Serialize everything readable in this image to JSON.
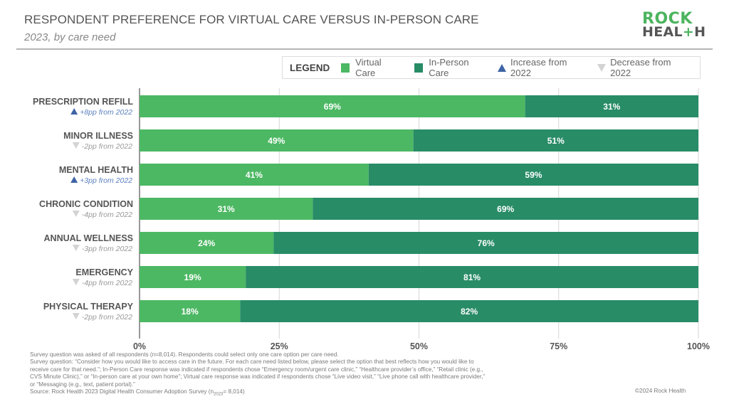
{
  "header": {
    "title": "RESPONDENT PREFERENCE FOR VIRTUAL CARE VERSUS IN-PERSON CARE",
    "subtitle": "2023, by care need"
  },
  "logo": {
    "line1": "ROCK",
    "line2_a": "HEAL",
    "line2_plus": "+",
    "line2_b": "H"
  },
  "legend": {
    "title": "LEGEND",
    "items": [
      {
        "label": "Virtual Care",
        "kind": "swatch",
        "color": "#4cb863"
      },
      {
        "label": "In-Person Care",
        "kind": "swatch",
        "color": "#288c67"
      },
      {
        "label": "Increase from 2022",
        "kind": "up",
        "color": "#3f64a6"
      },
      {
        "label": "Decrease from 2022",
        "kind": "down",
        "color": "#d3d3d3"
      }
    ]
  },
  "chart_data": {
    "type": "bar",
    "orientation": "horizontal",
    "stacked": true,
    "title": "RESPONDENT PREFERENCE FOR VIRTUAL CARE VERSUS IN-PERSON CARE",
    "subtitle": "2023, by care need",
    "categories": [
      "PRESCRIPTION REFILL",
      "MINOR ILLNESS",
      "MENTAL HEALTH",
      "CHRONIC CONDITION",
      "ANNUAL WELLNESS",
      "EMERGENCY",
      "PHYSICAL THERAPY"
    ],
    "changes": [
      {
        "direction": "up",
        "text": "+8pp from 2022"
      },
      {
        "direction": "down",
        "text": "-2pp from 2022"
      },
      {
        "direction": "up",
        "text": "+3pp from 2022"
      },
      {
        "direction": "down",
        "text": "-4pp from 2022"
      },
      {
        "direction": "down",
        "text": "-3pp from 2022"
      },
      {
        "direction": "down",
        "text": "-4pp from 2022"
      },
      {
        "direction": "down",
        "text": "-2pp from 2022"
      }
    ],
    "series": [
      {
        "name": "Virtual Care",
        "color": "#4cb863",
        "values": [
          69,
          49,
          41,
          31,
          24,
          19,
          18
        ]
      },
      {
        "name": "In-Person Care",
        "color": "#288c67",
        "values": [
          31,
          51,
          59,
          69,
          76,
          81,
          82
        ]
      }
    ],
    "xlim": [
      0,
      100
    ],
    "xticks": [
      0,
      25,
      50,
      75,
      100
    ],
    "xtick_labels": [
      "0%",
      "25%",
      "50%",
      "75%",
      "100%"
    ],
    "xlabel": "",
    "ylabel": "",
    "grid": true,
    "legend_position": "top-right",
    "up_color": "#3f64a6",
    "down_color": "#d3d3d3"
  },
  "footnotes": {
    "line1": "Survey question was asked of all respondents (n=8,014). Respondents could select only one care option per care need.",
    "line2": "Survey question: “Consider how you would like to access care in the future. For each care need listed below, please select the option that best reflects how you would like to",
    "line3": "receive care for that need.”; In-Person Care response was indicated if respondents chose “Emergency room/urgent care clinic,” “Healthcare provider’s office,” “Retail clinic (e.g.,",
    "line4": "CVS Minute Clinic),” or “In-person care at your own home”; Virtual care response was indicated if respondents chose “Live video visit,” “Live phone call with healthcare provider,”",
    "line5": "or “Messaging (e.g., text, patient portal).”",
    "source_prefix": "Source: Rock Health 2023 Digital Health Consumer Adoption Survey (n",
    "source_sub": "2023",
    "source_suffix": "= 8,014)",
    "copyright": "©2024 Rock Health"
  }
}
